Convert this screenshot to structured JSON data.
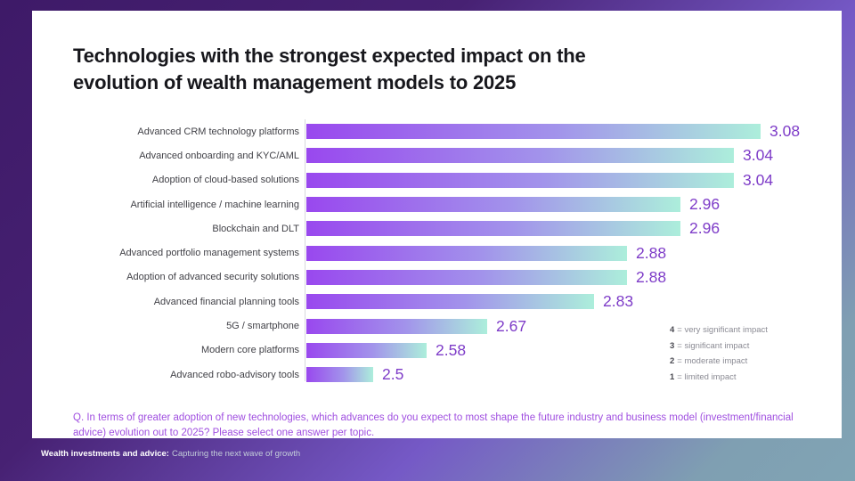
{
  "title": [
    "Technologies with the strongest expected impact on the",
    "evolution of wealth management models to 2025"
  ],
  "chart_data": {
    "type": "bar",
    "orientation": "horizontal",
    "categories": [
      "Advanced CRM technology platforms",
      "Advanced onboarding and KYC/AML",
      "Adoption of cloud-based solutions",
      "Artificial intelligence / machine learning",
      "Blockchain and DLT",
      "Advanced portfolio management systems",
      "Adoption of advanced security solutions",
      "Advanced financial planning tools",
      "5G / smartphone",
      "Modern core platforms",
      "Advanced robo-advisory tools"
    ],
    "values": [
      3.08,
      3.04,
      3.04,
      2.96,
      2.96,
      2.88,
      2.88,
      2.83,
      2.67,
      2.58,
      2.5
    ],
    "value_axis_min": 2.4,
    "value_axis_max": 3.2,
    "grid": false,
    "bar_gradient_start": "#9948ee",
    "bar_gradient_mid": "#a293eb",
    "bar_gradient_end": "#aceedb",
    "value_label_color": "#7e3cc8"
  },
  "legend": {
    "items": [
      {
        "num": "4",
        "text": "= very significant impact"
      },
      {
        "num": "3",
        "text": "= significant impact"
      },
      {
        "num": "2",
        "text": "= moderate impact"
      },
      {
        "num": "1",
        "text": "= limited impact"
      }
    ]
  },
  "question": "Q. In terms of greater adoption of new technologies, which advances do you expect to most shape the future industry and business model (investment/financial advice) evolution out to 2025? Please select one answer per topic.",
  "footer": {
    "bold": "Wealth investments and advice:",
    "regular": "Capturing the next wave of growth"
  },
  "colors": {
    "frame_dark_purple": "#44206f",
    "frame_violet": "#7559c6",
    "frame_steel_blue": "#80a4b4",
    "question_purple": "#a04fe0"
  }
}
